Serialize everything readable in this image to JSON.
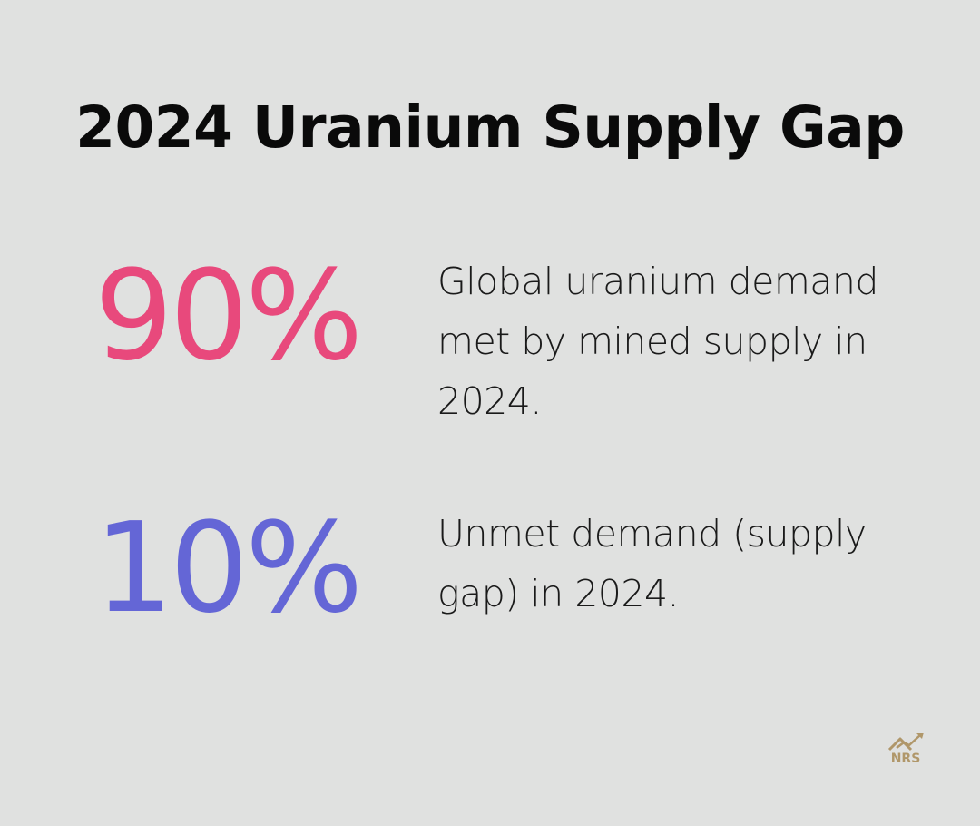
{
  "title": "2024 Uranium Supply Gap",
  "stats": [
    {
      "value": "90%",
      "description": "Global uranium demand met by mined supply in 2024.",
      "color": "#e8497c"
    },
    {
      "value": "10%",
      "description": "Unmet demand (supply gap) in 2024.",
      "color": "#6466d6"
    }
  ],
  "logo": {
    "text": "NRS",
    "icon": "house-chart-icon",
    "color": "#b0976a"
  },
  "colors": {
    "background": "#e0e1e0",
    "text": "#0a0a0a"
  }
}
